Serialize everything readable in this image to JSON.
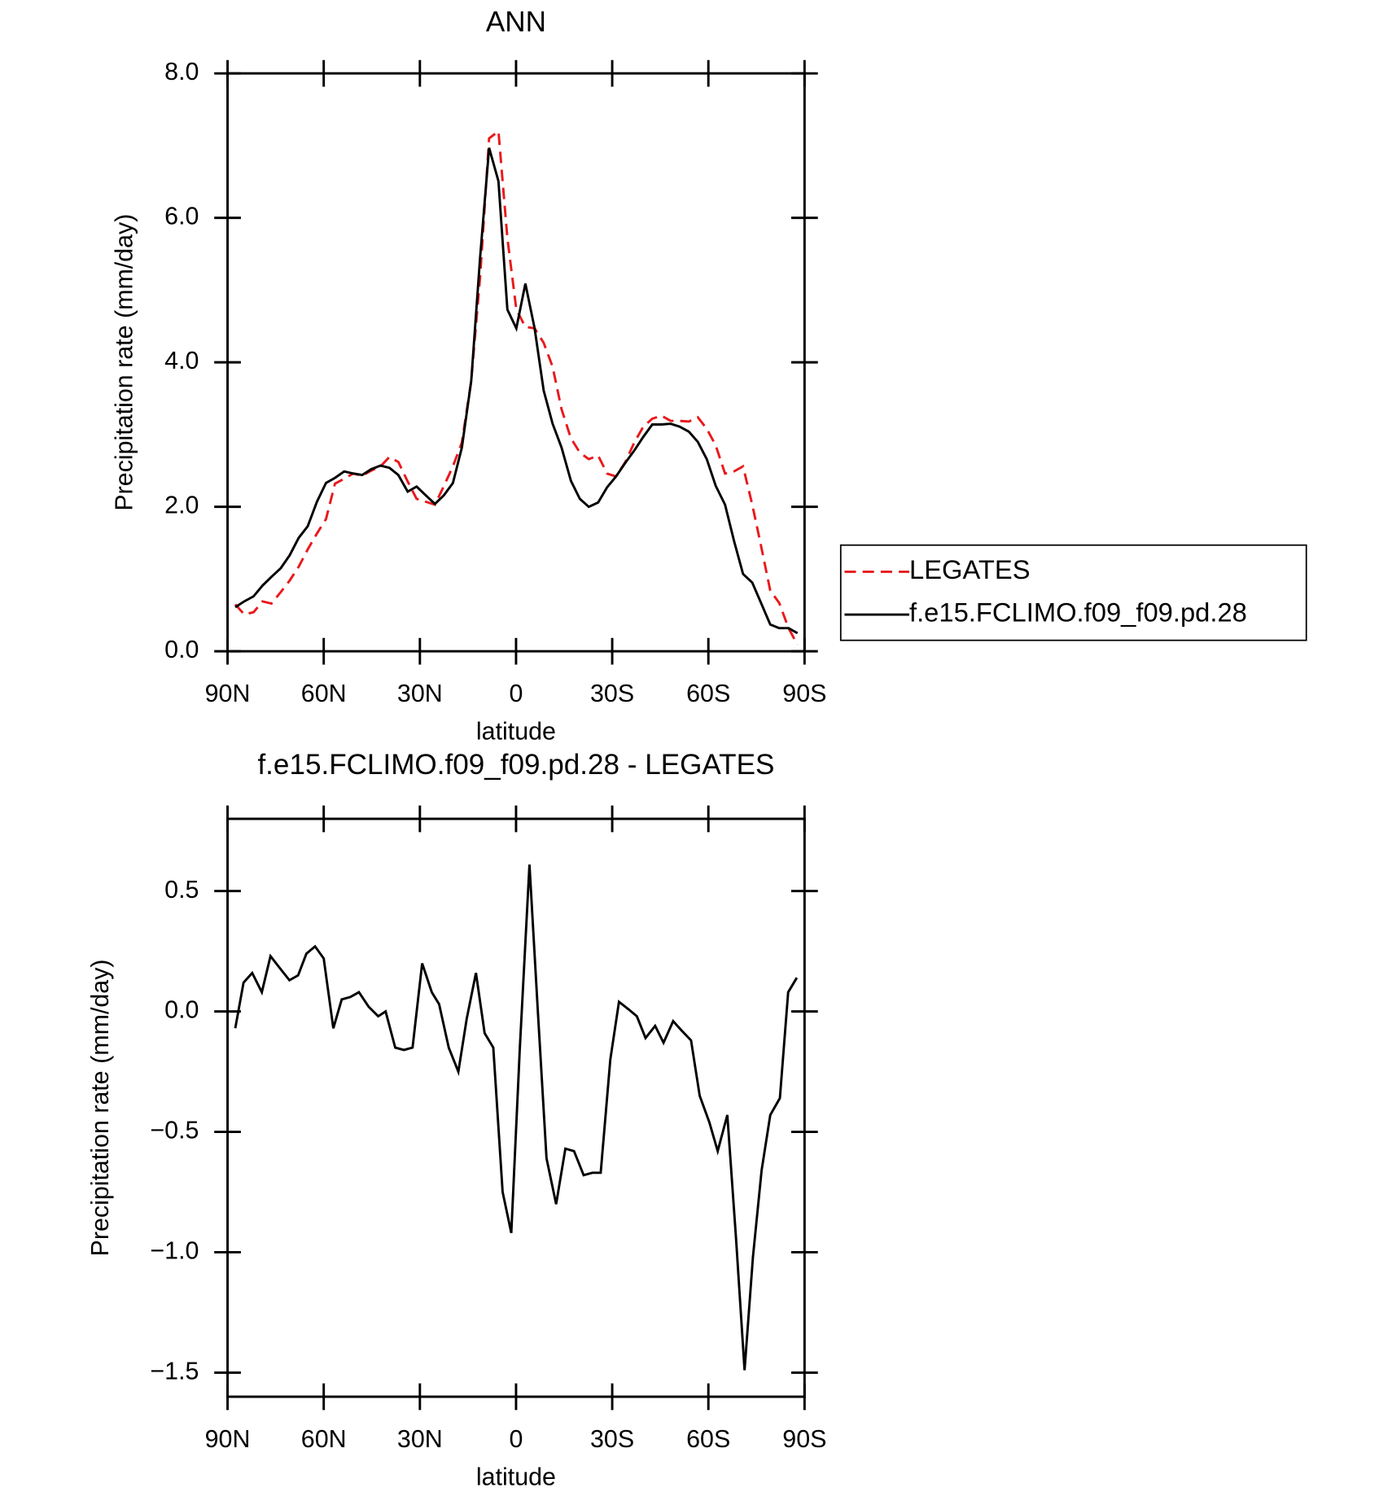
{
  "chart_data": [
    {
      "type": "line",
      "title": "ANN",
      "xlabel": "latitude",
      "ylabel": "Precipitation rate (mm/day)",
      "x": [
        87.6,
        84.8,
        81.9,
        79.1,
        76.3,
        73.4,
        70.6,
        67.8,
        65.0,
        62.1,
        59.3,
        56.5,
        53.6,
        50.8,
        48.0,
        45.2,
        42.3,
        39.5,
        36.7,
        33.8,
        31.0,
        28.2,
        25.3,
        22.5,
        19.7,
        16.9,
        14.0,
        11.2,
        8.4,
        5.5,
        2.7,
        -0.1,
        -2.9,
        -5.8,
        -8.6,
        -11.4,
        -14.2,
        -17.1,
        -19.9,
        -22.7,
        -25.6,
        -28.4,
        -31.2,
        -34.1,
        -36.9,
        -39.7,
        -42.5,
        -45.4,
        -48.2,
        -51.0,
        -53.9,
        -56.7,
        -59.5,
        -62.3,
        -65.2,
        -68.0,
        -70.8,
        -73.7,
        -76.5,
        -79.3,
        -82.1,
        -85.0,
        -87.8
      ],
      "series": [
        {
          "name": "LEGATES",
          "color": "#e8191c",
          "line_style": "dashed",
          "values": [
            0.65,
            0.51,
            0.54,
            0.69,
            0.66,
            0.82,
            0.98,
            1.17,
            1.41,
            1.63,
            1.83,
            2.32,
            2.39,
            2.46,
            2.43,
            2.5,
            2.56,
            2.69,
            2.62,
            2.35,
            2.11,
            2.07,
            2.03,
            2.29,
            2.56,
            2.89,
            3.74,
            5.19,
            7.1,
            7.2,
            5.72,
            4.73,
            4.49,
            4.47,
            4.27,
            3.94,
            3.35,
            2.95,
            2.75,
            2.66,
            2.71,
            2.46,
            2.42,
            2.62,
            2.89,
            3.11,
            3.22,
            3.26,
            3.19,
            3.19,
            3.18,
            3.24,
            3.08,
            2.85,
            2.46,
            2.49,
            2.56,
            2.03,
            1.44,
            0.84,
            0.67,
            0.32,
            0.09
          ]
        },
        {
          "name": "f.e15.FCLIMO.f09_f09.pd.28",
          "color": "#000000",
          "line_style": "solid",
          "values": [
            0.61,
            0.69,
            0.76,
            0.91,
            1.03,
            1.15,
            1.33,
            1.57,
            1.73,
            2.07,
            2.33,
            2.4,
            2.49,
            2.46,
            2.44,
            2.52,
            2.57,
            2.54,
            2.44,
            2.21,
            2.28,
            2.16,
            2.04,
            2.16,
            2.33,
            2.82,
            3.74,
            5.46,
            6.97,
            6.51,
            4.73,
            4.47,
            5.09,
            4.47,
            3.61,
            3.15,
            2.82,
            2.36,
            2.11,
            2.0,
            2.06,
            2.27,
            2.42,
            2.61,
            2.78,
            2.97,
            3.14,
            3.14,
            3.15,
            3.11,
            3.04,
            2.9,
            2.66,
            2.29,
            2.03,
            1.53,
            1.07,
            0.95,
            0.66,
            0.37,
            0.32,
            0.32,
            0.25
          ]
        }
      ],
      "xlim": [
        90,
        -90
      ],
      "xticks": [
        {
          "value": 90,
          "label": "90N"
        },
        {
          "value": 60,
          "label": "60N"
        },
        {
          "value": 30,
          "label": "30N"
        },
        0,
        {
          "value": -30,
          "label": "30S"
        },
        {
          "value": -60,
          "label": "60S"
        },
        {
          "value": -90,
          "label": "90S"
        }
      ],
      "ylim": [
        0,
        8
      ],
      "yticks": [
        {
          "value": 0,
          "label": "0.0"
        },
        {
          "value": 2,
          "label": "2.0"
        },
        {
          "value": 4,
          "label": "4.0"
        },
        {
          "value": 6,
          "label": "6.0"
        },
        {
          "value": 8,
          "label": "8.0"
        }
      ],
      "legend": "right"
    },
    {
      "type": "line",
      "title": "f.e15.FCLIMO.f09_f09.pd.28 - LEGATES",
      "xlabel": "latitude",
      "ylabel": "Precipitation rate (mm/day)",
      "x": [
        87.6,
        85.0,
        82.3,
        79.3,
        76.6,
        73.7,
        70.7,
        68.0,
        65.4,
        62.7,
        60.0,
        57.0,
        54.4,
        51.7,
        49.0,
        46.0,
        43.0,
        40.7,
        37.7,
        35.0,
        32.3,
        29.3,
        26.3,
        24.0,
        21.0,
        18.0,
        15.4,
        12.5,
        9.8,
        7.1,
        4.2,
        1.5,
        -1.2,
        -4.2,
        -6.8,
        -9.5,
        -12.5,
        -15.4,
        -18.1,
        -21.1,
        -23.8,
        -26.4,
        -29.4,
        -32.1,
        -35.0,
        -37.7,
        -40.4,
        -43.4,
        -46.0,
        -49.0,
        -51.7,
        -54.6,
        -57.3,
        -60.3,
        -62.9,
        -65.9,
        -68.6,
        -71.3,
        -73.9,
        -76.6,
        -79.3,
        -82.3,
        -84.9,
        -87.6
      ],
      "values": [
        -0.07,
        0.12,
        0.16,
        0.08,
        0.23,
        0.18,
        0.13,
        0.15,
        0.24,
        0.27,
        0.22,
        -0.07,
        0.05,
        0.06,
        0.08,
        0.02,
        -0.02,
        0.0,
        -0.15,
        -0.16,
        -0.15,
        0.2,
        0.08,
        0.03,
        -0.15,
        -0.25,
        -0.03,
        0.16,
        -0.09,
        -0.15,
        -0.75,
        -0.92,
        -0.15,
        0.61,
        0.0,
        -0.61,
        -0.8,
        -0.57,
        -0.58,
        -0.68,
        -0.67,
        -0.67,
        -0.2,
        0.04,
        0.01,
        -0.02,
        -0.11,
        -0.06,
        -0.13,
        -0.04,
        -0.08,
        -0.12,
        -0.35,
        -0.46,
        -0.58,
        -0.43,
        -0.94,
        -1.49,
        -1.02,
        -0.66,
        -0.43,
        -0.36,
        0.08,
        0.14
      ],
      "color": "#000000",
      "xlim": [
        90,
        -90
      ],
      "xticks": [
        {
          "value": 90,
          "label": "90N"
        },
        {
          "value": 60,
          "label": "60N"
        },
        {
          "value": 30,
          "label": "30N"
        },
        0,
        {
          "value": -30,
          "label": "30S"
        },
        {
          "value": -60,
          "label": "60S"
        },
        {
          "value": -90,
          "label": "90S"
        }
      ],
      "ylim": [
        -1.6,
        0.8
      ],
      "yticks": [
        {
          "value": 0.5,
          "label": "0.5"
        },
        {
          "value": 0,
          "label": "0.0"
        },
        {
          "value": -0.5,
          "label": "−0.5"
        },
        {
          "value": -1,
          "label": "−1.0"
        },
        {
          "value": -1.5,
          "label": "−1.5"
        }
      ]
    }
  ]
}
